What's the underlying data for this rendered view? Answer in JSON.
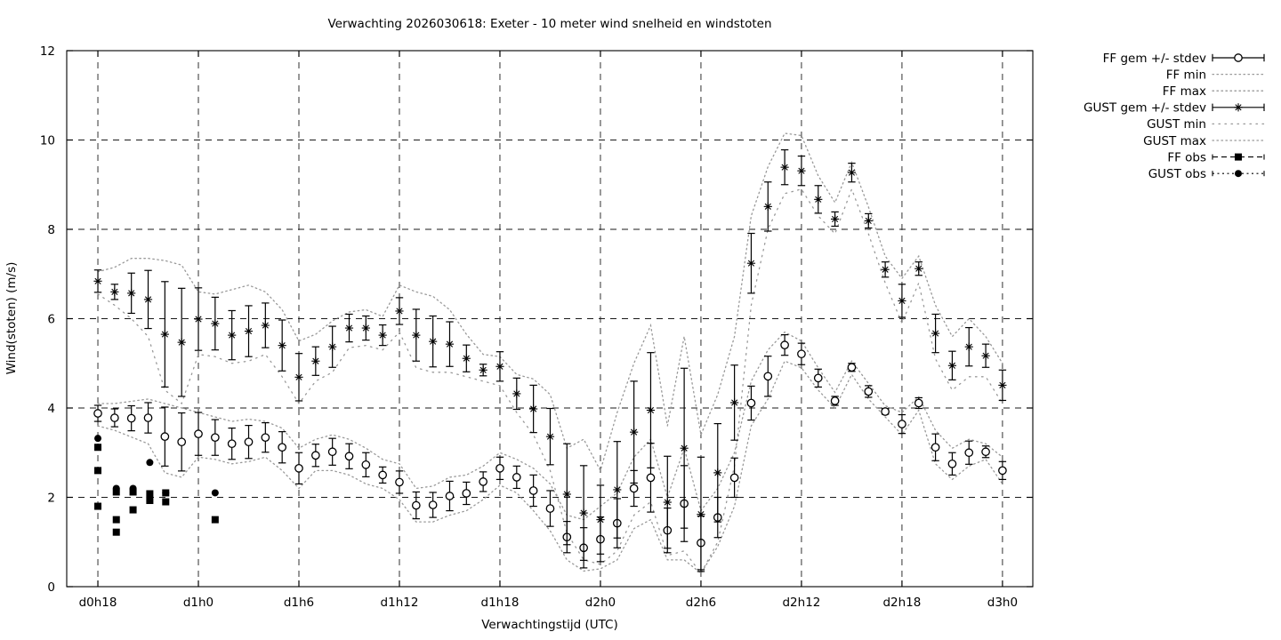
{
  "title": "Verwachting 2026030618: Exeter - 10 meter wind snelheid en windstoten",
  "chart_data": {
    "type": "line",
    "title": "Verwachting 2026030618: Exeter - 10 meter wind snelheid en windstoten",
    "xlabel": "Verwachtingstijd (UTC)",
    "ylabel": "Wind(stoten) (m/s)",
    "ylim": [
      0,
      12
    ],
    "xlim_hours": [
      16.14,
      73.81
    ],
    "grid": true,
    "legend_position": "outside-right",
    "y_ticks": [
      0,
      2,
      4,
      6,
      8,
      10,
      12
    ],
    "x_ticks": [
      {
        "hour": 18,
        "label": "d0h18"
      },
      {
        "hour": 24,
        "label": "d1h0"
      },
      {
        "hour": 30,
        "label": "d1h6"
      },
      {
        "hour": 36,
        "label": "d1h12"
      },
      {
        "hour": 42,
        "label": "d1h18"
      },
      {
        "hour": 48,
        "label": "d2h0"
      },
      {
        "hour": 54,
        "label": "d2h6"
      },
      {
        "hour": 60,
        "label": "d2h12"
      },
      {
        "hour": 66,
        "label": "d2h18"
      },
      {
        "hour": 72,
        "label": "d3h0"
      }
    ],
    "hours": [
      18,
      19,
      20,
      21,
      22,
      23,
      24,
      25,
      26,
      27,
      28,
      29,
      30,
      31,
      32,
      33,
      34,
      35,
      36,
      37,
      38,
      39,
      40,
      41,
      42,
      43,
      44,
      45,
      46,
      47,
      48,
      49,
      50,
      51,
      52,
      53,
      54,
      55,
      56,
      57,
      58,
      59,
      60,
      61,
      62,
      63,
      64,
      65,
      66,
      67,
      68,
      69,
      70,
      71,
      72
    ],
    "colors": {
      "line": "#000000",
      "envelope": "#999999",
      "background": "#ffffff"
    },
    "series": [
      {
        "id": "ff-gem",
        "name": "FF gem +/- stdev",
        "style": "errorbar",
        "marker": "circle-open",
        "values": [
          3.88,
          3.78,
          3.77,
          3.78,
          3.36,
          3.24,
          3.42,
          3.34,
          3.2,
          3.24,
          3.34,
          3.12,
          2.65,
          2.94,
          3.02,
          2.92,
          2.73,
          2.5,
          2.34,
          1.82,
          1.83,
          2.03,
          2.09,
          2.35,
          2.65,
          2.45,
          2.15,
          1.75,
          1.11,
          0.87,
          1.06,
          1.42,
          2.2,
          2.44,
          1.26,
          1.86,
          0.98,
          1.55,
          2.44,
          4.11,
          4.71,
          5.41,
          5.21,
          4.67,
          4.16,
          4.91,
          4.37,
          3.92,
          3.64,
          4.11,
          3.12,
          2.75,
          3.0,
          3.02,
          2.6
        ],
        "stdev": [
          0.18,
          0.2,
          0.28,
          0.34,
          0.66,
          0.65,
          0.48,
          0.4,
          0.35,
          0.37,
          0.33,
          0.35,
          0.35,
          0.25,
          0.3,
          0.28,
          0.27,
          0.18,
          0.25,
          0.3,
          0.28,
          0.33,
          0.25,
          0.22,
          0.25,
          0.25,
          0.35,
          0.4,
          0.35,
          0.45,
          0.5,
          0.55,
          0.4,
          0.77,
          0.5,
          0.85,
          0.6,
          0.45,
          0.44,
          0.38,
          0.45,
          0.23,
          0.24,
          0.2,
          0.1,
          0.09,
          0.13,
          0.06,
          0.21,
          0.12,
          0.3,
          0.25,
          0.26,
          0.13,
          0.2
        ]
      },
      {
        "id": "ff-min",
        "name": "FF min",
        "style": "envelope-dotted",
        "values": [
          3.6,
          3.5,
          3.35,
          3.2,
          2.55,
          2.45,
          2.9,
          2.85,
          2.75,
          2.8,
          2.9,
          2.6,
          2.2,
          2.6,
          2.6,
          2.5,
          2.3,
          2.2,
          1.95,
          1.45,
          1.45,
          1.6,
          1.7,
          1.95,
          2.27,
          2.1,
          1.7,
          1.25,
          0.6,
          0.35,
          0.4,
          0.6,
          1.3,
          1.5,
          0.6,
          0.6,
          0.3,
          0.9,
          1.8,
          3.6,
          4.2,
          5.05,
          4.9,
          4.4,
          4.0,
          4.75,
          4.2,
          3.8,
          3.4,
          3.95,
          2.75,
          2.4,
          2.7,
          2.85,
          2.3
        ]
      },
      {
        "id": "ff-max",
        "name": "FF max",
        "style": "envelope-dotted",
        "values": [
          4.1,
          4.1,
          4.15,
          4.2,
          4.1,
          4.0,
          3.9,
          3.8,
          3.7,
          3.75,
          3.7,
          3.55,
          3.1,
          3.3,
          3.4,
          3.3,
          3.1,
          2.85,
          2.75,
          2.2,
          2.25,
          2.45,
          2.5,
          2.7,
          3.0,
          2.85,
          2.65,
          2.3,
          1.6,
          1.5,
          1.8,
          2.1,
          2.9,
          3.3,
          2.0,
          3.1,
          1.7,
          2.2,
          3.0,
          4.6,
          5.3,
          5.7,
          5.5,
          4.9,
          4.35,
          5.05,
          4.55,
          4.05,
          3.9,
          4.25,
          3.5,
          3.1,
          3.3,
          3.2,
          2.9
        ]
      },
      {
        "id": "gust-gem",
        "name": "GUST gem +/- stdev",
        "style": "errorbar",
        "marker": "asterisk",
        "values": [
          6.84,
          6.6,
          6.57,
          6.43,
          5.65,
          5.47,
          5.99,
          5.89,
          5.63,
          5.72,
          5.85,
          5.4,
          4.69,
          5.05,
          5.37,
          5.79,
          5.79,
          5.63,
          6.17,
          5.63,
          5.49,
          5.43,
          5.11,
          4.85,
          4.93,
          4.32,
          3.98,
          3.36,
          2.07,
          1.65,
          1.5,
          2.17,
          3.46,
          3.95,
          1.89,
          3.1,
          1.62,
          2.55,
          4.12,
          7.24,
          8.51,
          9.39,
          9.31,
          8.67,
          8.23,
          9.27,
          8.19,
          7.1,
          6.4,
          7.12,
          5.67,
          4.95,
          5.37,
          5.17,
          4.51
        ],
        "stdev": [
          0.25,
          0.17,
          0.45,
          0.65,
          1.18,
          1.21,
          0.7,
          0.59,
          0.55,
          0.57,
          0.5,
          0.57,
          0.53,
          0.32,
          0.46,
          0.31,
          0.27,
          0.23,
          0.3,
          0.58,
          0.57,
          0.5,
          0.3,
          0.13,
          0.33,
          0.35,
          0.53,
          0.63,
          1.13,
          1.06,
          0.77,
          1.08,
          1.14,
          1.29,
          1.03,
          1.79,
          1.28,
          1.1,
          0.84,
          0.67,
          0.55,
          0.39,
          0.33,
          0.31,
          0.16,
          0.21,
          0.16,
          0.17,
          0.37,
          0.15,
          0.43,
          0.32,
          0.43,
          0.26,
          0.34
        ]
      },
      {
        "id": "gust-min",
        "name": "GUST min",
        "style": "envelope-dotted-sparse",
        "values": [
          6.55,
          6.3,
          6.0,
          5.6,
          4.4,
          4.1,
          5.2,
          5.15,
          5.0,
          5.05,
          5.2,
          4.7,
          4.1,
          4.6,
          4.8,
          5.35,
          5.4,
          5.3,
          5.7,
          4.9,
          4.8,
          4.8,
          4.7,
          4.6,
          4.5,
          3.9,
          3.4,
          2.6,
          1.2,
          0.6,
          0.5,
          0.8,
          1.6,
          1.9,
          0.7,
          0.8,
          0.3,
          1.0,
          2.7,
          6.3,
          8.0,
          8.8,
          8.9,
          8.3,
          7.9,
          8.9,
          7.9,
          6.8,
          5.9,
          6.8,
          5.1,
          4.4,
          4.7,
          4.7,
          4.1
        ]
      },
      {
        "id": "gust-max",
        "name": "GUST max",
        "style": "envelope-dotted",
        "values": [
          7.05,
          7.15,
          7.35,
          7.35,
          7.3,
          7.2,
          6.6,
          6.55,
          6.65,
          6.75,
          6.6,
          6.2,
          5.5,
          5.65,
          5.95,
          6.15,
          6.2,
          6.05,
          6.75,
          6.6,
          6.5,
          6.2,
          5.65,
          5.2,
          5.15,
          4.75,
          4.65,
          4.3,
          3.1,
          3.3,
          2.6,
          3.9,
          5.0,
          5.85,
          3.6,
          5.6,
          3.4,
          4.3,
          5.6,
          8.3,
          9.4,
          10.15,
          10.1,
          9.2,
          8.6,
          9.5,
          8.5,
          7.4,
          6.9,
          7.4,
          6.3,
          5.6,
          6.0,
          5.6,
          5.0
        ]
      },
      {
        "id": "ff-obs",
        "name": "FF obs",
        "style": "obs",
        "marker": "square-filled",
        "legend_dash": "6,4",
        "points": [
          [
            18,
            3.12
          ],
          [
            18,
            2.6
          ],
          [
            18,
            1.8
          ],
          [
            19.1,
            2.12
          ],
          [
            19.1,
            1.5
          ],
          [
            19.1,
            1.22
          ],
          [
            20.1,
            2.12
          ],
          [
            20.1,
            1.72
          ],
          [
            21.1,
            2.08
          ],
          [
            21.1,
            1.93
          ],
          [
            22.05,
            2.1
          ],
          [
            22.05,
            1.9
          ],
          [
            25,
            1.5
          ]
        ]
      },
      {
        "id": "gust-obs",
        "name": "GUST obs",
        "style": "obs",
        "marker": "dot-filled",
        "legend_dash": "2,3.5",
        "points": [
          [
            18,
            3.32
          ],
          [
            19.1,
            2.2
          ],
          [
            20.1,
            2.2
          ],
          [
            21.1,
            2.78
          ],
          [
            22.05,
            2.1
          ],
          [
            25,
            2.1
          ]
        ]
      }
    ]
  }
}
